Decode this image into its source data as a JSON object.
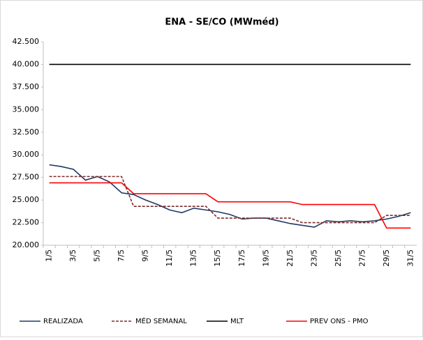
{
  "chart_data": {
    "type": "line",
    "title": "ENA - SE/CO (MWméd)",
    "categories": [
      "1/5",
      null,
      "3/5",
      null,
      "5/5",
      null,
      "7/5",
      null,
      "9/5",
      null,
      "11/5",
      null,
      "13/5",
      null,
      "15/5",
      null,
      "17/5",
      null,
      "19/5",
      null,
      "21/5",
      null,
      "23/5",
      null,
      "25/5",
      null,
      "27/5",
      null,
      "29/5",
      null,
      "31/5"
    ],
    "series": [
      {
        "name": "REALIZADA",
        "color": "#1f3864",
        "dashed": false,
        "values": [
          28900,
          28700,
          28400,
          27200,
          27600,
          27000,
          25800,
          25600,
          25000,
          24500,
          23900,
          23600,
          24100,
          23900,
          23700,
          23400,
          22900,
          23000,
          23000,
          22700,
          22400,
          22200,
          22000,
          22700,
          22600,
          22700,
          22600,
          22700,
          22900,
          23200,
          23600
        ]
      },
      {
        "name": "MÉD SEMANAL",
        "color": "#7b2c2c",
        "dashed": true,
        "values": [
          27600,
          27600,
          27600,
          27600,
          27600,
          27600,
          27600,
          24300,
          24300,
          24300,
          24300,
          24300,
          24300,
          24300,
          23000,
          23000,
          23000,
          23000,
          23000,
          23000,
          23000,
          22500,
          22500,
          22500,
          22500,
          22500,
          22500,
          22500,
          23300,
          23300,
          23300
        ]
      },
      {
        "name": "MLT",
        "color": "#000000",
        "dashed": false,
        "values": [
          40000,
          40000,
          40000,
          40000,
          40000,
          40000,
          40000,
          40000,
          40000,
          40000,
          40000,
          40000,
          40000,
          40000,
          40000,
          40000,
          40000,
          40000,
          40000,
          40000,
          40000,
          40000,
          40000,
          40000,
          40000,
          40000,
          40000,
          40000,
          40000,
          40000,
          40000
        ]
      },
      {
        "name": "PREV ONS - PMO",
        "color": "#ff0000",
        "dashed": false,
        "values": [
          26900,
          26900,
          26900,
          26900,
          26900,
          26900,
          26900,
          25700,
          25700,
          25700,
          25700,
          25700,
          25700,
          25700,
          24800,
          24800,
          24800,
          24800,
          24800,
          24800,
          24800,
          24500,
          24500,
          24500,
          24500,
          24500,
          24500,
          24500,
          21900,
          21900,
          21900
        ]
      }
    ],
    "ylim": [
      20000,
      42500
    ],
    "yticks": [
      {
        "value": 20000,
        "label": "20.000"
      },
      {
        "value": 22500,
        "label": "22.500"
      },
      {
        "value": 25000,
        "label": "25.000"
      },
      {
        "value": 27500,
        "label": "27.500"
      },
      {
        "value": 30000,
        "label": "30.000"
      },
      {
        "value": 32500,
        "label": "32.500"
      },
      {
        "value": 35000,
        "label": "35.000"
      },
      {
        "value": 37500,
        "label": "37.500"
      },
      {
        "value": 40000,
        "label": "40.000"
      },
      {
        "value": 42500,
        "label": "42.500"
      }
    ],
    "grid": false,
    "legend": "bottom"
  }
}
